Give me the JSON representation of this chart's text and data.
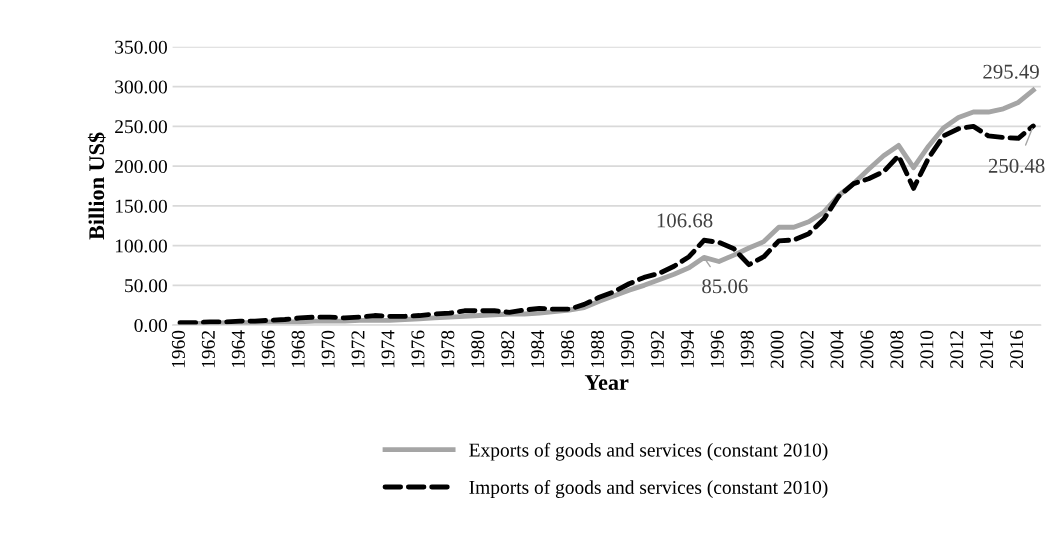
{
  "chart_data": {
    "type": "line",
    "categories": [
      "1960",
      null,
      "1962",
      null,
      "1964",
      null,
      "1966",
      null,
      "1968",
      null,
      "1970",
      null,
      "1972",
      null,
      "1974",
      null,
      "1976",
      null,
      "1978",
      null,
      "1980",
      null,
      "1982",
      null,
      "1984",
      null,
      "1986",
      null,
      "1988",
      null,
      "1990",
      null,
      "1992",
      null,
      "1994",
      null,
      "1996",
      null,
      "1998",
      null,
      "2000",
      null,
      "2002",
      null,
      "2004",
      null,
      "2006",
      null,
      "2008",
      null,
      "2010",
      null,
      "2012",
      null,
      "2014",
      null,
      "2016",
      null
    ],
    "xlabel": "Year",
    "ylabel": "Billion US$",
    "ylim": [
      0,
      350
    ],
    "yticks": [
      {
        "value": 0,
        "label": "0.00"
      },
      {
        "value": 50,
        "label": "50.00"
      },
      {
        "value": 100,
        "label": "100.00"
      },
      {
        "value": 150,
        "label": "150.00"
      },
      {
        "value": 200,
        "label": "200.00"
      },
      {
        "value": 250,
        "label": "250.00"
      },
      {
        "value": 300,
        "label": "300.00"
      },
      {
        "value": 350,
        "label": "350.00"
      }
    ],
    "grid": "y",
    "legend": "bottom",
    "series": [
      {
        "name": "Exports of goods and services (constant 2010)",
        "color": "#a5a5a5",
        "line_style": "solid",
        "values": [
          2,
          2,
          2,
          3,
          3,
          3,
          4,
          4,
          4,
          5,
          5,
          5,
          6,
          6,
          6,
          7,
          8,
          9,
          10,
          11,
          12,
          13,
          14,
          14,
          15,
          17,
          19,
          22,
          30,
          37,
          44,
          50,
          57,
          64,
          72,
          85.06,
          80,
          88,
          97,
          105,
          123,
          123,
          130,
          142,
          163,
          178,
          196,
          213,
          226,
          198,
          225,
          248,
          261,
          268,
          268,
          272,
          280,
          295.49
        ],
        "value_labels": [
          null,
          null,
          null,
          null,
          null,
          null,
          null,
          null,
          null,
          null,
          null,
          null,
          null,
          null,
          null,
          null,
          null,
          null,
          null,
          null,
          null,
          null,
          null,
          null,
          null,
          null,
          null,
          null,
          null,
          null,
          null,
          null,
          null,
          null,
          null,
          "85.06",
          null,
          null,
          null,
          null,
          null,
          null,
          null,
          null,
          null,
          null,
          null,
          null,
          null,
          null,
          null,
          null,
          null,
          null,
          null,
          null,
          null,
          "295.49"
        ]
      },
      {
        "name": "Imports of goods and services (constant 2010)",
        "color": "#000000",
        "line_style": "dashed",
        "values": [
          3,
          3,
          4,
          4,
          5,
          5,
          6,
          7,
          9,
          10,
          10,
          9,
          10,
          12,
          11,
          11,
          12,
          14,
          15,
          18,
          18,
          18,
          16,
          19,
          21,
          20,
          20,
          26,
          35,
          42,
          52,
          60,
          65,
          74,
          86,
          106.68,
          104,
          96,
          76,
          86,
          106,
          107,
          115,
          133,
          162,
          178,
          184,
          193,
          213,
          172,
          210,
          238,
          247,
          250,
          238,
          236,
          235,
          250.48
        ],
        "value_labels": [
          null,
          null,
          null,
          null,
          null,
          null,
          null,
          null,
          null,
          null,
          null,
          null,
          null,
          null,
          null,
          null,
          null,
          null,
          null,
          null,
          null,
          null,
          null,
          null,
          null,
          null,
          null,
          null,
          null,
          null,
          null,
          null,
          null,
          null,
          null,
          "106.68",
          null,
          null,
          null,
          null,
          null,
          null,
          null,
          null,
          null,
          null,
          null,
          null,
          null,
          null,
          null,
          null,
          null,
          null,
          null,
          null,
          null,
          "250.48"
        ]
      }
    ]
  }
}
